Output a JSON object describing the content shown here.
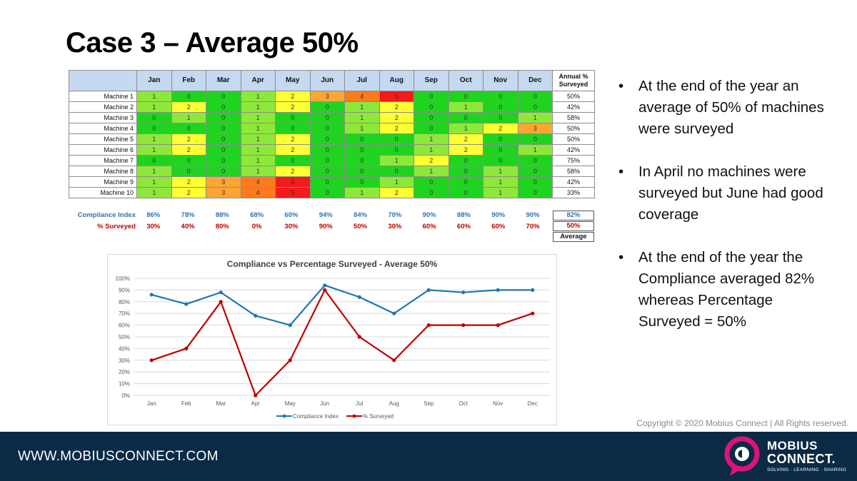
{
  "slide": {
    "title": "Case 3 – Average 50%"
  },
  "table": {
    "months": [
      "Jan",
      "Feb",
      "Mar",
      "Apr",
      "May",
      "Jun",
      "Jul",
      "Aug",
      "Sep",
      "Oct",
      "Nov",
      "Dec"
    ],
    "annual_header": "Annual % Surveyed",
    "rows": [
      {
        "name": "Machine 1",
        "values": [
          1,
          0,
          0,
          1,
          2,
          3,
          4,
          5,
          0,
          0,
          0,
          0
        ],
        "annual": "50%"
      },
      {
        "name": "Machine 2",
        "values": [
          1,
          2,
          0,
          1,
          2,
          0,
          1,
          2,
          0,
          1,
          0,
          0
        ],
        "annual": "42%"
      },
      {
        "name": "Machine 3",
        "values": [
          0,
          1,
          0,
          1,
          0,
          0,
          1,
          2,
          0,
          0,
          0,
          1
        ],
        "annual": "58%"
      },
      {
        "name": "Machine 4",
        "values": [
          0,
          0,
          0,
          1,
          0,
          0,
          1,
          2,
          0,
          1,
          2,
          3
        ],
        "annual": "50%"
      },
      {
        "name": "Machine 5",
        "values": [
          1,
          2,
          0,
          1,
          2,
          0,
          0,
          0,
          1,
          2,
          0,
          0
        ],
        "annual": "50%"
      },
      {
        "name": "Machine 6",
        "values": [
          1,
          2,
          0,
          1,
          2,
          0,
          0,
          0,
          1,
          2,
          0,
          1
        ],
        "annual": "42%"
      },
      {
        "name": "Machine 7",
        "values": [
          0,
          0,
          0,
          1,
          0,
          0,
          0,
          1,
          2,
          0,
          0,
          0
        ],
        "annual": "75%"
      },
      {
        "name": "Machine 8",
        "values": [
          1,
          0,
          0,
          1,
          2,
          0,
          0,
          0,
          1,
          0,
          1,
          0
        ],
        "annual": "58%"
      },
      {
        "name": "Machine 9",
        "values": [
          1,
          2,
          3,
          4,
          5,
          0,
          0,
          1,
          0,
          0,
          1,
          0
        ],
        "annual": "42%"
      },
      {
        "name": "Machine 10",
        "values": [
          1,
          2,
          3,
          4,
          5,
          0,
          1,
          2,
          0,
          0,
          1,
          0
        ],
        "annual": "33%"
      }
    ],
    "cell_colors": {
      "0": "#1fd41f",
      "1": "#8ee83a",
      "2": "#ffff33",
      "3": "#ffa533",
      "4": "#ff7a1a",
      "5": "#f21a1a"
    }
  },
  "summary": {
    "compliance_label": "Compliance Index",
    "compliance": [
      "86%",
      "78%",
      "88%",
      "68%",
      "60%",
      "94%",
      "84%",
      "70%",
      "90%",
      "88%",
      "90%",
      "90%"
    ],
    "compliance_avg": "82%",
    "surveyed_label": "% Surveyed",
    "surveyed": [
      "30%",
      "40%",
      "80%",
      "0%",
      "30%",
      "90%",
      "50%",
      "30%",
      "60%",
      "60%",
      "60%",
      "70%"
    ],
    "surveyed_avg": "50%",
    "average_label": "Average",
    "compliance_color": "#2e75b6",
    "surveyed_color": "#c00000"
  },
  "chart_data": {
    "type": "line",
    "title": "Compliance vs Percentage Surveyed - Average 50%",
    "categories": [
      "Jan",
      "Feb",
      "Mar",
      "Apr",
      "May",
      "Jun",
      "Jul",
      "Aug",
      "Sep",
      "Oct",
      "Nov",
      "Dec"
    ],
    "series": [
      {
        "name": "Compliance Index",
        "values": [
          86,
          78,
          88,
          68,
          60,
          94,
          84,
          70,
          90,
          88,
          90,
          90
        ],
        "color": "#1f77b4"
      },
      {
        "name": "% Surveyed",
        "values": [
          30,
          40,
          80,
          0,
          30,
          90,
          50,
          30,
          60,
          60,
          60,
          70
        ],
        "color": "#c00000"
      }
    ],
    "ylim": [
      0,
      100
    ],
    "yticks": [
      "0%",
      "10%",
      "20%",
      "30%",
      "40%",
      "50%",
      "60%",
      "70%",
      "80%",
      "90%",
      "100%"
    ],
    "grid": true,
    "legend": "bottom"
  },
  "bullets": [
    "At the end of the year an average of 50% of machines were surveyed",
    "In April no machines were surveyed but June had good coverage",
    "At the end of the year the Compliance averaged 82% whereas Percentage Surveyed = 50%"
  ],
  "copyright": "Copyright © 2020 Mobius Connect | All Rights reserved.",
  "footer": {
    "url": "WWW.MOBIUSCONNECT.COM",
    "logo_line1": "MOBIUS",
    "logo_line2": "CONNECT.",
    "logo_tagline": "SOLVING · LEARNING · SHARING",
    "logo_color": "#e0117a"
  }
}
